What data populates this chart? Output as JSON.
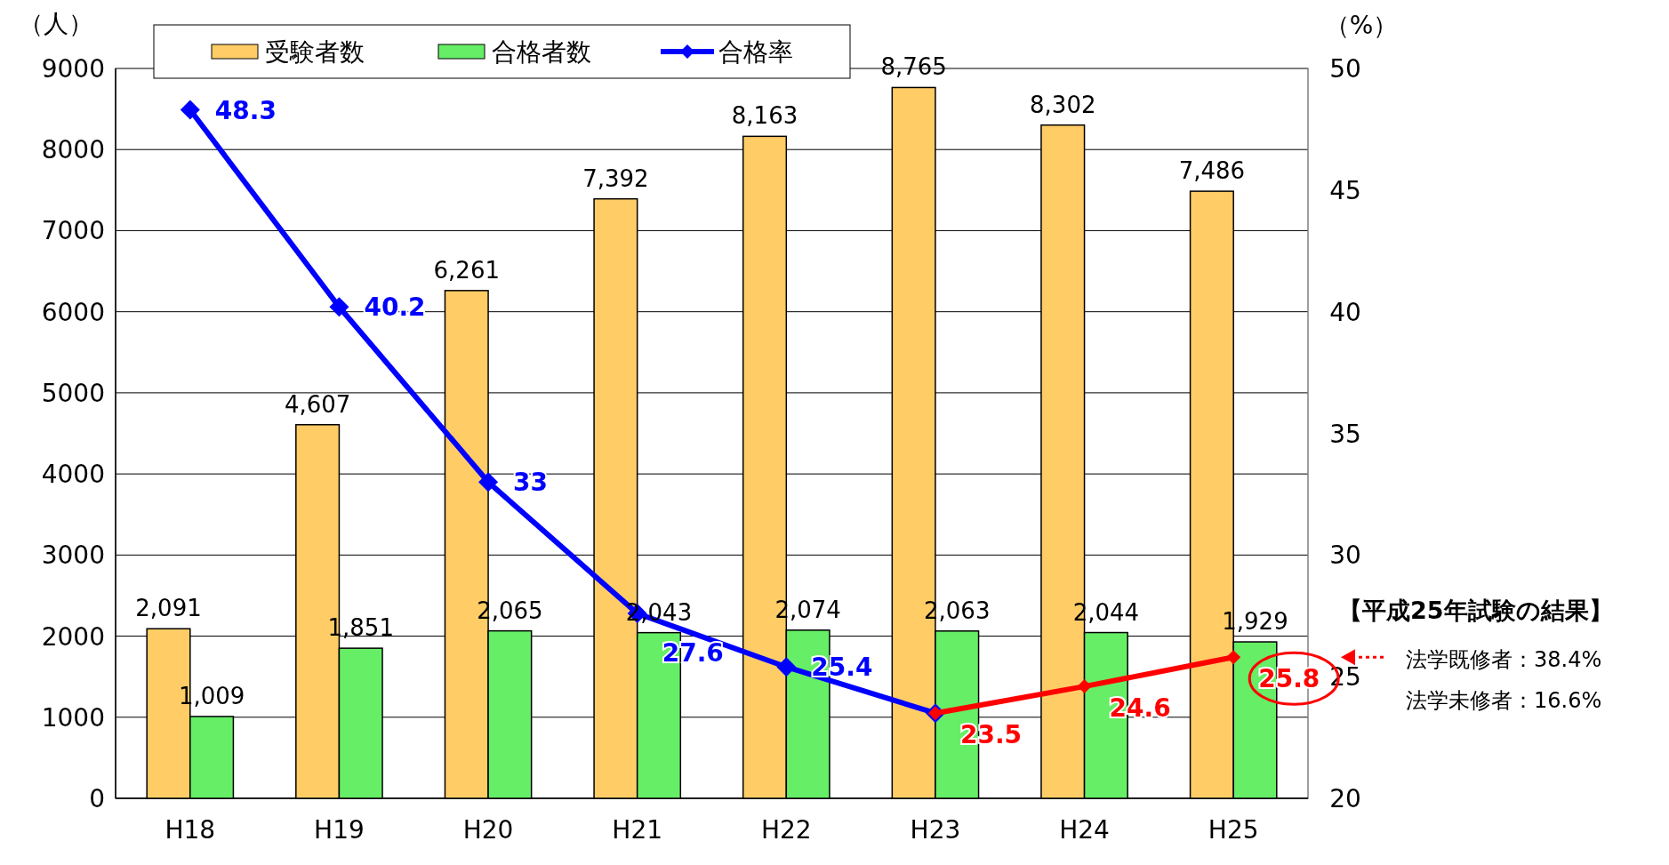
{
  "chart_data": {
    "type": "bar",
    "ylabel": "（人）",
    "y2label": "（%）",
    "categories": [
      "H18",
      "H19",
      "H20",
      "H21",
      "H22",
      "H23",
      "H24",
      "H25"
    ],
    "series": [
      {
        "name": "受験者数",
        "color": "#ffcc66",
        "values": [
          2091,
          4607,
          6261,
          7392,
          8163,
          8765,
          8302,
          7486
        ],
        "value_labels": [
          "2,091",
          "4,607",
          "6,261",
          "7,392",
          "8,163",
          "8,765",
          "8,302",
          "7,486"
        ]
      },
      {
        "name": "合格者数",
        "color": "#66ee66",
        "values": [
          1009,
          1851,
          2065,
          2043,
          2074,
          2063,
          2044,
          1929
        ],
        "value_labels": [
          "1,009",
          "1,851",
          "2,065",
          "2,043",
          "2,074",
          "2,063",
          "2,044",
          "1,929"
        ]
      },
      {
        "name": "合格率",
        "type": "line",
        "axis": "y2",
        "color": "#0000ff",
        "values": [
          48.3,
          40.2,
          33,
          27.6,
          25.4,
          23.5,
          null,
          null
        ],
        "value_labels": [
          "48.3",
          "40.2",
          "33",
          "27.6",
          "25.4",
          null,
          null,
          null
        ]
      },
      {
        "type": "line",
        "axis": "y2",
        "color": "#ff0000",
        "values": [
          null,
          null,
          null,
          null,
          null,
          23.5,
          24.6,
          25.8
        ],
        "value_labels": [
          null,
          null,
          null,
          null,
          null,
          "23.5",
          "24.6",
          "25.8"
        ]
      }
    ],
    "ylim": [
      0,
      9000
    ],
    "yticks": [
      0,
      1000,
      2000,
      3000,
      4000,
      5000,
      6000,
      7000,
      8000,
      9000
    ],
    "y2lim": [
      20,
      50
    ],
    "y2ticks": [
      20,
      25,
      30,
      35,
      40,
      45,
      50
    ],
    "grid": "y",
    "legend": "top left",
    "marker": "diamond",
    "annotations": [
      "【平成25年試験の結果】",
      "法学既修者：38.4%",
      "法学未修者：16.6%"
    ]
  }
}
